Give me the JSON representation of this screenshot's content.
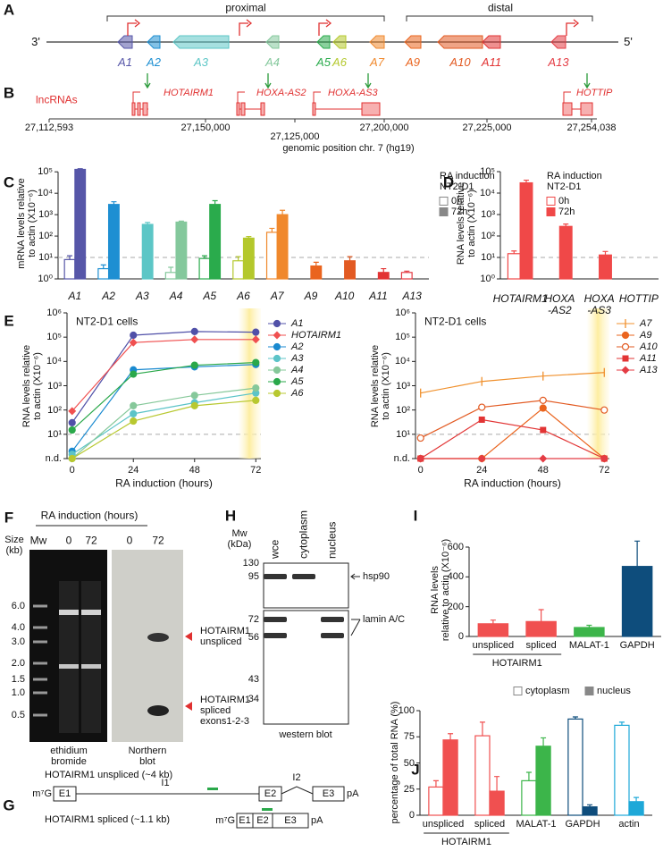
{
  "panels": {
    "A": {
      "letter": "A",
      "proximal": "proximal",
      "distal": "distal",
      "end3": "3'",
      "end5": "5'",
      "genes": [
        "A1",
        "A2",
        "A3",
        "A4",
        "A5",
        "A6",
        "A7",
        "A9",
        "A10",
        "A11",
        "A13"
      ]
    },
    "B": {
      "letter": "B",
      "label": "lncRNAs",
      "lncrnas": [
        "HOTAIRM1",
        "HOXA-AS2",
        "HOXA-AS3",
        "HOTTIP"
      ],
      "coordinates": [
        "27,112,593",
        "27,150,000",
        "27,125,000",
        "27,200,000",
        "27,225,000",
        "27,254,038"
      ],
      "axis_label": "genomic position chr. 7 (hg19)"
    },
    "F": {
      "letter": "F",
      "title": "RA induction (hours)",
      "size_label": "Size\n(kb)",
      "lanes": [
        "Mw",
        "0",
        "72",
        "0",
        "72"
      ],
      "sizes": [
        "6.0",
        "4.0",
        "3.0",
        "2.0",
        "1.5",
        "1.0",
        "0.5"
      ],
      "bands": [
        "HOTAIRM1\nunspliced",
        "HOTAIRM1\nspliced\nexons1-2-3"
      ],
      "gels": [
        "ethidium\nbromide",
        "Northern\nblot"
      ]
    },
    "G": {
      "letter": "G",
      "unspliced": "HOTAIRM1 unspliced (~4 kb)",
      "spliced": "HOTAIRM1 spliced (~1.1 kb)",
      "cap": "m⁷G",
      "exons": [
        "E1",
        "E2",
        "E3"
      ],
      "introns": [
        "I1",
        "I2"
      ],
      "tail": "pA"
    },
    "H": {
      "letter": "H",
      "mw_label": "Mw\n(kDa)",
      "lanes": [
        "wce",
        "cytoplasm",
        "nucleus"
      ],
      "mw": [
        "130",
        "95",
        "72",
        "56",
        "43",
        "34"
      ],
      "proteins": [
        "hsp90",
        "lamin A/C"
      ],
      "caption": "western blot"
    }
  },
  "chart_data": [
    {
      "type": "bar",
      "letter": "C",
      "ylabel": "mRNA levels relative\nto actin (X10⁻⁶)",
      "log": true,
      "categories": [
        "A1",
        "A2",
        "A3",
        "A4",
        "A5",
        "A6",
        "A7",
        "A9",
        "A10",
        "A11",
        "A13"
      ],
      "colors": [
        "#5656a8",
        "#1e8fd2",
        "#5cc6c6",
        "#84c89c",
        "#2aab4c",
        "#b4c82c",
        "#f0882c",
        "#ea641e",
        "#e25a22",
        "#e23434",
        "#e43c44"
      ],
      "ylim": [
        1,
        150000
      ],
      "yticks": [
        {
          "value": 1,
          "label": "10⁰"
        },
        {
          "value": 10,
          "label": "10¹"
        },
        {
          "value": 100,
          "label": "10²"
        },
        {
          "value": 1000,
          "label": "10³"
        },
        {
          "value": 10000,
          "label": "10⁴"
        },
        {
          "value": 100000,
          "label": "10⁵"
        }
      ],
      "reference_line": 10,
      "legend_title": "RA induction\nNT2-D1",
      "series": [
        {
          "name": "0h",
          "style": "open",
          "color": "#888888",
          "values": [
            8,
            3,
            null,
            2,
            9,
            7,
            150,
            null,
            null,
            null,
            2
          ],
          "errors": [
            4,
            1.5,
            null,
            1.5,
            3,
            4,
            80,
            null,
            null,
            null,
            0.3
          ]
        },
        {
          "name": "72h",
          "style": "filled",
          "color": "#888888",
          "values": [
            130000,
            3000,
            350,
            450,
            3000,
            80,
            1000,
            4,
            7,
            2,
            null
          ],
          "errors": [
            10000,
            1000,
            80,
            50,
            1500,
            15,
            600,
            2,
            4,
            1,
            null
          ]
        }
      ]
    },
    {
      "type": "bar",
      "letter": "D",
      "ylabel": "RNA levels relative\nto actin (X10⁻⁶)",
      "log": true,
      "categories": [
        "HOTAIRM1",
        "HOXA\n-AS2",
        "HOXA\n-AS3",
        "HOTTIP"
      ],
      "colors": [
        "#f04848",
        "#f04848",
        "#f04848",
        "#f04848"
      ],
      "ylim": [
        1,
        100000
      ],
      "yticks": [
        {
          "value": 1,
          "label": "10⁰"
        },
        {
          "value": 10,
          "label": "10¹"
        },
        {
          "value": 100,
          "label": "10²"
        },
        {
          "value": 1000,
          "label": "10³"
        },
        {
          "value": 10000,
          "label": "10⁴"
        },
        {
          "value": 100000,
          "label": "10⁵"
        }
      ],
      "reference_line": 10,
      "legend_title": "RA induction\nNT2-D1",
      "series": [
        {
          "name": "0h",
          "style": "open",
          "color": "#f04848",
          "values": [
            15,
            null,
            null,
            null
          ],
          "errors": [
            5,
            null,
            null,
            null
          ]
        },
        {
          "name": "72h",
          "style": "filled",
          "color": "#f04848",
          "values": [
            30000,
            280,
            13,
            null
          ],
          "errors": [
            10000,
            80,
            6,
            null
          ]
        }
      ]
    },
    {
      "type": "line",
      "letter": "E",
      "title": "NT2-D1 cells",
      "xlabel": "RA induction (hours)",
      "ylabel": "RNA levels relative\nto actin (X10⁻⁶)",
      "log": true,
      "x": [
        0,
        24,
        48,
        72
      ],
      "xlim": [
        -2,
        74
      ],
      "xticks": [
        0,
        24,
        48,
        72
      ],
      "ylim": [
        1,
        1000000
      ],
      "yticks": [
        {
          "value": 1,
          "label": "n.d."
        },
        {
          "value": 10,
          "label": "10¹"
        },
        {
          "value": 100,
          "label": "10²"
        },
        {
          "value": 1000,
          "label": "10³"
        },
        {
          "value": 10000,
          "label": "10⁴"
        },
        {
          "value": 100000,
          "label": "10⁵"
        },
        {
          "value": 1000000,
          "label": "10⁶"
        }
      ],
      "reference_line": 10,
      "series": [
        {
          "name": "A1",
          "color": "#5050a8",
          "marker": "circle",
          "values": [
            30,
            120000,
            170000,
            160000
          ]
        },
        {
          "name": "HOTAIRM1",
          "color": "#f05050",
          "marker": "diamond",
          "values": [
            90,
            60000,
            80000,
            80000
          ]
        },
        {
          "name": "A2",
          "color": "#1a8ad0",
          "marker": "circle",
          "values": [
            2,
            4500,
            6000,
            7500
          ]
        },
        {
          "name": "A3",
          "color": "#5cc4c8",
          "marker": "circle",
          "values": [
            1.5,
            70,
            200,
            500
          ]
        },
        {
          "name": "A4",
          "color": "#86c89a",
          "marker": "circle",
          "values": [
            1,
            150,
            400,
            800
          ]
        },
        {
          "name": "A5",
          "color": "#2aa84a",
          "marker": "circle",
          "values": [
            15,
            3000,
            7000,
            9000
          ]
        },
        {
          "name": "A6",
          "color": "#b8c830",
          "marker": "circle",
          "values": [
            1,
            35,
            150,
            250
          ]
        }
      ]
    },
    {
      "type": "line",
      "title": "NT2-D1 cells",
      "xlabel": "RA induction (hours)",
      "ylabel": "RNA levels relative\nto actin (X10⁻⁶)",
      "log": true,
      "x": [
        0,
        24,
        48,
        72
      ],
      "xlim": [
        -2,
        74
      ],
      "xticks": [
        0,
        24,
        48,
        72
      ],
      "ylim": [
        1,
        1000000
      ],
      "yticks": [
        {
          "value": 1,
          "label": "n.d."
        },
        {
          "value": 10,
          "label": "10¹"
        },
        {
          "value": 100,
          "label": "10²"
        },
        {
          "value": 1000,
          "label": "10³"
        },
        {
          "value": 10000,
          "label": "10⁴"
        },
        {
          "value": 100000,
          "label": "10⁵"
        },
        {
          "value": 1000000,
          "label": "10⁶"
        }
      ],
      "reference_line": 10,
      "series": [
        {
          "name": "A7",
          "color": "#f0902c",
          "marker": "tick",
          "values": [
            500,
            1500,
            2500,
            3500
          ]
        },
        {
          "name": "A9",
          "color": "#ea641e",
          "marker": "circle",
          "values": [
            1,
            1,
            120,
            1
          ]
        },
        {
          "name": "A10",
          "color": "#e25a22",
          "marker": "open-circle",
          "values": [
            7,
            130,
            250,
            100
          ]
        },
        {
          "name": "A11",
          "color": "#e23434",
          "marker": "square",
          "values": [
            1,
            40,
            15,
            1
          ]
        },
        {
          "name": "A13",
          "color": "#e43c44",
          "marker": "diamond",
          "values": [
            1,
            1,
            1,
            1
          ]
        }
      ]
    },
    {
      "type": "bar",
      "letter": "I",
      "ylabel": "RNA levels\nrelative to actin (X10⁻⁶)",
      "categories": [
        "unspliced",
        "spliced",
        "MALAT-1",
        "GAPDH"
      ],
      "group_label": "HOTAIRM1",
      "colors": [
        "#f05050",
        "#f05050",
        "#3cb54a",
        "#0e4d7c"
      ],
      "values": [
        85,
        100,
        60,
        470
      ],
      "errors": [
        25,
        80,
        15,
        170
      ],
      "ylim": [
        0,
        600
      ],
      "yticks": [
        0,
        200,
        400,
        600
      ]
    },
    {
      "type": "bar",
      "letter": "J",
      "ylabel": "percentage of total RNA (%)",
      "categories": [
        "unspliced",
        "spliced",
        "MALAT-1",
        "GAPDH",
        "actin"
      ],
      "group_label": "HOTAIRM1",
      "colors": [
        "#f05050",
        "#f05050",
        "#3cb54a",
        "#0e4d7c",
        "#1ea8d8"
      ],
      "ylim": [
        0,
        100
      ],
      "yticks": [
        0,
        25,
        50,
        75,
        100
      ],
      "series": [
        {
          "name": "cytoplasm",
          "style": "open",
          "color": "#888888",
          "values": [
            27,
            76,
            33,
            92,
            86
          ],
          "errors": [
            6,
            13,
            8,
            2,
            3
          ]
        },
        {
          "name": "nucleus",
          "style": "filled",
          "color": "#888888",
          "values": [
            72,
            23,
            66,
            8,
            13
          ],
          "errors": [
            6,
            14,
            8,
            2,
            4
          ]
        }
      ]
    }
  ]
}
